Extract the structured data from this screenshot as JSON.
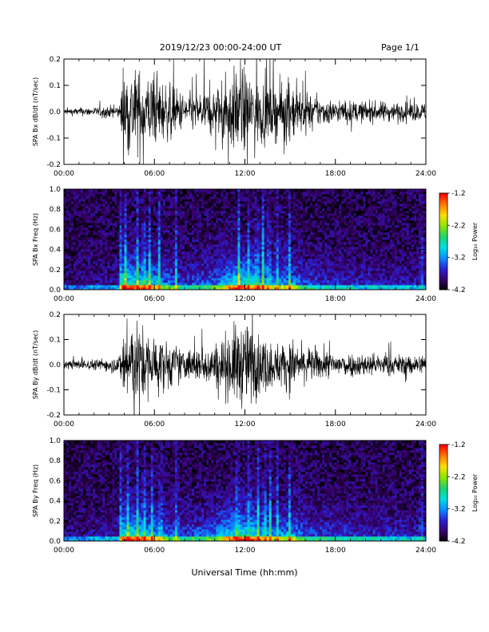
{
  "header": {
    "title": "2019/12/23  00:00-24:00 UT",
    "page": "Page 1/1"
  },
  "x_axis_title": "Universal Time (hh:mm)",
  "colorbar": {
    "label": "Log₁₀ Power",
    "ticks": [
      "-1.2",
      "-2.2",
      "-3.2",
      "-4.2"
    ],
    "colors": [
      "#000000",
      "#3a006e",
      "#2b1fd0",
      "#0a8cff",
      "#00e0e0",
      "#20d070",
      "#8ce600",
      "#ffe000",
      "#ff7a00",
      "#ff0000"
    ]
  },
  "chart_data": [
    {
      "type": "line",
      "ylabel": "SPA Bx dB/dt (nT/sec)",
      "xlim": [
        0,
        24
      ],
      "ylim": [
        -0.2,
        0.2
      ],
      "x_tick_labels": [
        "00:00",
        "06:00",
        "12:00",
        "18:00",
        "24:00"
      ],
      "y_tick_labels": [
        "0.2",
        "0.1",
        "0.0",
        "-0.1",
        "-0.2"
      ],
      "envelope": {
        "hours": [
          0,
          2,
          3.7,
          3.9,
          4.5,
          5.5,
          6.5,
          8,
          10,
          11.5,
          12.5,
          13,
          14,
          15,
          16,
          18,
          21,
          24
        ],
        "amplitude": [
          0.015,
          0.02,
          0.03,
          0.2,
          0.2,
          0.17,
          0.14,
          0.08,
          0.1,
          0.2,
          0.16,
          0.15,
          0.12,
          0.14,
          0.08,
          0.05,
          0.045,
          0.04
        ]
      }
    },
    {
      "type": "heatmap",
      "ylabel": "SPA Bx Freq (Hz)",
      "xlim": [
        0,
        24
      ],
      "ylim": [
        0,
        1.0
      ],
      "zlim": [
        -4.2,
        -1.2
      ],
      "x_tick_labels": [
        "00:00",
        "06:00",
        "12:00",
        "18:00",
        "24:00"
      ],
      "y_tick_labels": [
        "1.0",
        "0.8",
        "0.6",
        "0.4",
        "0.2",
        "0.0"
      ],
      "activity": {
        "hours": [
          0,
          2,
          3.7,
          3.9,
          4.5,
          5.5,
          6.5,
          8,
          10,
          11.5,
          12.5,
          13,
          14,
          15,
          16,
          18,
          21,
          24
        ],
        "level": [
          0.1,
          0.15,
          0.2,
          1.0,
          0.95,
          0.85,
          0.6,
          0.35,
          0.5,
          1.0,
          0.85,
          0.8,
          0.6,
          0.7,
          0.4,
          0.3,
          0.25,
          0.2
        ]
      },
      "bursts_hours": [
        3.8,
        4.1,
        4.9,
        5.3,
        5.7,
        6.3,
        7.4,
        11.6,
        12.2,
        12.8,
        13.2,
        13.6,
        14.1,
        15.0,
        23.7
      ]
    },
    {
      "type": "line",
      "ylabel": "SPA By dB/dt (nT/sec)",
      "xlim": [
        0,
        24
      ],
      "ylim": [
        -0.2,
        0.2
      ],
      "x_tick_labels": [
        "00:00",
        "06:00",
        "12:00",
        "18:00",
        "24:00"
      ],
      "y_tick_labels": [
        "0.2",
        "0.1",
        "0.0",
        "-0.1",
        "-0.2"
      ],
      "envelope": {
        "hours": [
          0,
          2,
          3.7,
          3.9,
          4.5,
          5.5,
          6.5,
          8,
          10,
          11.5,
          12.5,
          13,
          14,
          15,
          16,
          18,
          21,
          24
        ],
        "amplitude": [
          0.02,
          0.025,
          0.04,
          0.2,
          0.2,
          0.16,
          0.12,
          0.07,
          0.1,
          0.2,
          0.18,
          0.14,
          0.1,
          0.12,
          0.08,
          0.06,
          0.05,
          0.045
        ]
      }
    },
    {
      "type": "heatmap",
      "ylabel": "SPA By Freq (Hz)",
      "xlim": [
        0,
        24
      ],
      "ylim": [
        0,
        1.0
      ],
      "zlim": [
        -4.2,
        -1.2
      ],
      "x_tick_labels": [
        "00:00",
        "06:00",
        "12:00",
        "18:00",
        "24:00"
      ],
      "y_tick_labels": [
        "1.0",
        "0.8",
        "0.6",
        "0.4",
        "0.2",
        "0.0"
      ],
      "activity": {
        "hours": [
          0,
          2,
          3.7,
          3.9,
          4.5,
          5.5,
          6.5,
          8,
          10,
          11.5,
          12.5,
          13,
          14,
          15,
          16,
          18,
          21,
          24
        ],
        "level": [
          0.12,
          0.18,
          0.25,
          1.0,
          0.95,
          0.85,
          0.6,
          0.4,
          0.55,
          1.0,
          0.9,
          0.8,
          0.6,
          0.7,
          0.45,
          0.35,
          0.3,
          0.25
        ]
      },
      "bursts_hours": [
        3.8,
        4.2,
        4.9,
        5.3,
        5.8,
        6.4,
        7.5,
        11.5,
        12.3,
        12.9,
        13.3,
        13.7,
        14.2,
        15.0,
        23.7
      ]
    }
  ]
}
